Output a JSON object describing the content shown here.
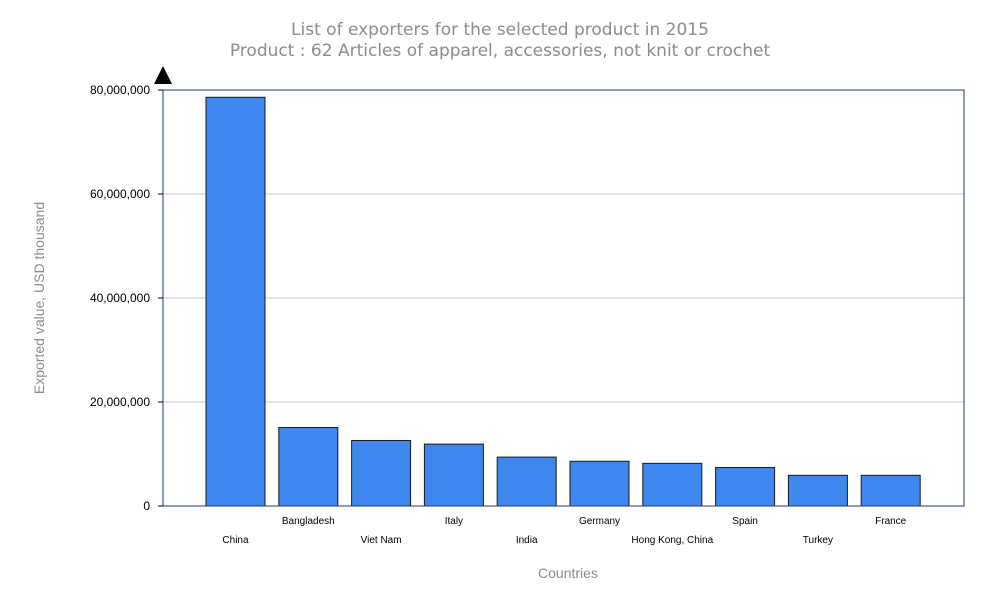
{
  "chart_data": {
    "type": "bar",
    "title": "List of exporters for the selected product in 2015",
    "subtitle": "Product : 62 Articles of apparel, accessories, not knit or crochet",
    "xlabel": "Countries",
    "ylabel": "Exported value, USD thousand",
    "categories": [
      "China",
      "Bangladesh",
      "Viet Nam",
      "Italy",
      "India",
      "Germany",
      "Hong Kong, China",
      "Spain",
      "Turkey",
      "France"
    ],
    "values": [
      78600000,
      15100000,
      12600000,
      11900000,
      9400000,
      8600000,
      8200000,
      7400000,
      5900000,
      5900000
    ],
    "ylim": [
      0,
      80000000
    ],
    "yticks": [
      0,
      20000000,
      40000000,
      60000000,
      80000000
    ],
    "ytick_labels": [
      "0",
      "20,000,000",
      "40,000,000",
      "60,000,000",
      "80,000,000"
    ],
    "grid": true,
    "legend": "none",
    "colors": {
      "bar": "#3d87ee",
      "bar_border": "#1a1a1a",
      "frame": "#1f3a6e",
      "grid": "#c8c8c8",
      "title": "#8c8c8c"
    },
    "icons": {
      "axis_arrow": "triangle-up-arrow-icon"
    }
  }
}
